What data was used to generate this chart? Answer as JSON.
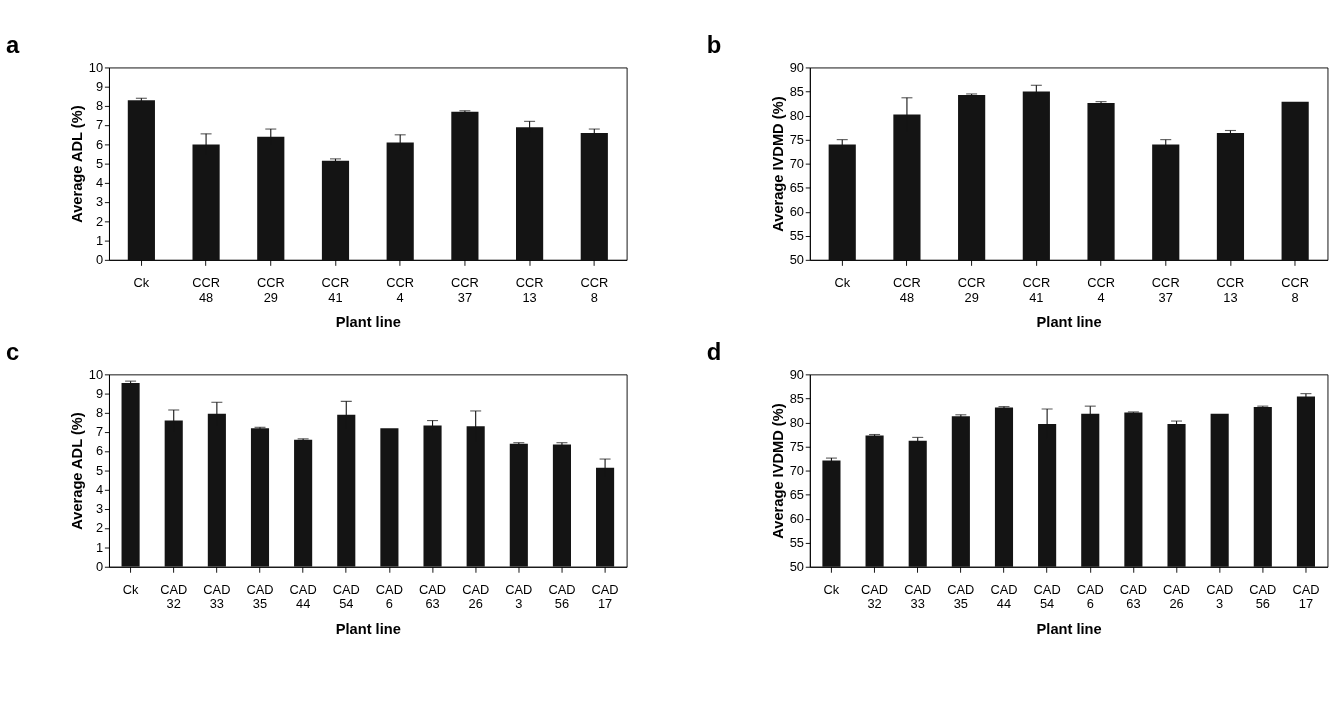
{
  "chart_data": [
    {
      "type": "bar",
      "title": "a",
      "xlabel": "Plant line",
      "ylabel": "Average ADL (%)",
      "categories": [
        "Ck",
        "CCR 48",
        "CCR 29",
        "CCR 41",
        "CCR 4",
        "CCR 37",
        "CCR 13",
        "CCR 8"
      ],
      "values": [
        8.3,
        6.0,
        6.4,
        5.15,
        6.1,
        7.7,
        6.9,
        6.6
      ],
      "errors": [
        0.1,
        0.55,
        0.4,
        0.1,
        0.4,
        0.05,
        0.3,
        0.2
      ],
      "color": "#141414",
      "ylim": [
        0,
        10
      ],
      "yticks": [
        0,
        1,
        2,
        3,
        4,
        5,
        6,
        7,
        8,
        9,
        10
      ],
      "grid": false
    },
    {
      "type": "bar",
      "title": "b",
      "xlabel": "Plant line",
      "ylabel": "Average IVDMD (%)",
      "categories": [
        "Ck",
        "CCR 48",
        "CCR 29",
        "CCR 41",
        "CCR 4",
        "CCR 37",
        "CCR 13",
        "CCR 8"
      ],
      "values": [
        74,
        80.2,
        84.3,
        85,
        82.6,
        74,
        76.4,
        82.9
      ],
      "errors": [
        1,
        3.5,
        0.2,
        1.3,
        0.3,
        1,
        0.5,
        null
      ],
      "color": "#141414",
      "ylim": [
        50,
        90
      ],
      "yticks": [
        50,
        55,
        60,
        65,
        70,
        75,
        80,
        85,
        90
      ],
      "grid": false
    },
    {
      "type": "bar",
      "title": "c",
      "xlabel": "Plant line",
      "ylabel": "Average ADL (%)",
      "categories": [
        "Ck",
        "CAD 32",
        "CAD 33",
        "CAD 35",
        "CAD 44",
        "CAD 54",
        "CAD 6",
        "CAD 63",
        "CAD 26",
        "CAD 3",
        "CAD 56",
        "CAD 17"
      ],
      "values": [
        9.55,
        7.6,
        7.95,
        7.2,
        6.6,
        7.9,
        7.2,
        7.35,
        7.3,
        6.4,
        6.35,
        5.15
      ],
      "errors": [
        0.1,
        0.55,
        0.6,
        0.05,
        0.05,
        0.7,
        null,
        0.25,
        0.8,
        0.05,
        0.1,
        0.45
      ],
      "color": "#141414",
      "ylim": [
        0,
        10
      ],
      "yticks": [
        0,
        1,
        2,
        3,
        4,
        5,
        6,
        7,
        8,
        9,
        10
      ],
      "grid": false
    },
    {
      "type": "bar",
      "title": "d",
      "xlabel": "Plant line",
      "ylabel": "Average IVDMD (%)",
      "categories": [
        "Ck",
        "CAD 32",
        "CAD 33",
        "CAD 35",
        "CAD 44",
        "CAD 54",
        "CAD 6",
        "CAD 63",
        "CAD 26",
        "CAD 3",
        "CAD 56",
        "CAD 17"
      ],
      "values": [
        72.1,
        77.3,
        76.2,
        81.3,
        83.1,
        79.7,
        81.8,
        82.1,
        79.7,
        81.8,
        83.2,
        85.4
      ],
      "errors": [
        0.5,
        0.2,
        0.7,
        0.3,
        0.2,
        3.1,
        1.6,
        0.1,
        0.6,
        null,
        0.2,
        0.6
      ],
      "color": "#141414",
      "ylim": [
        50,
        90
      ],
      "yticks": [
        50,
        55,
        60,
        65,
        70,
        75,
        80,
        85,
        90
      ],
      "grid": false
    }
  ]
}
